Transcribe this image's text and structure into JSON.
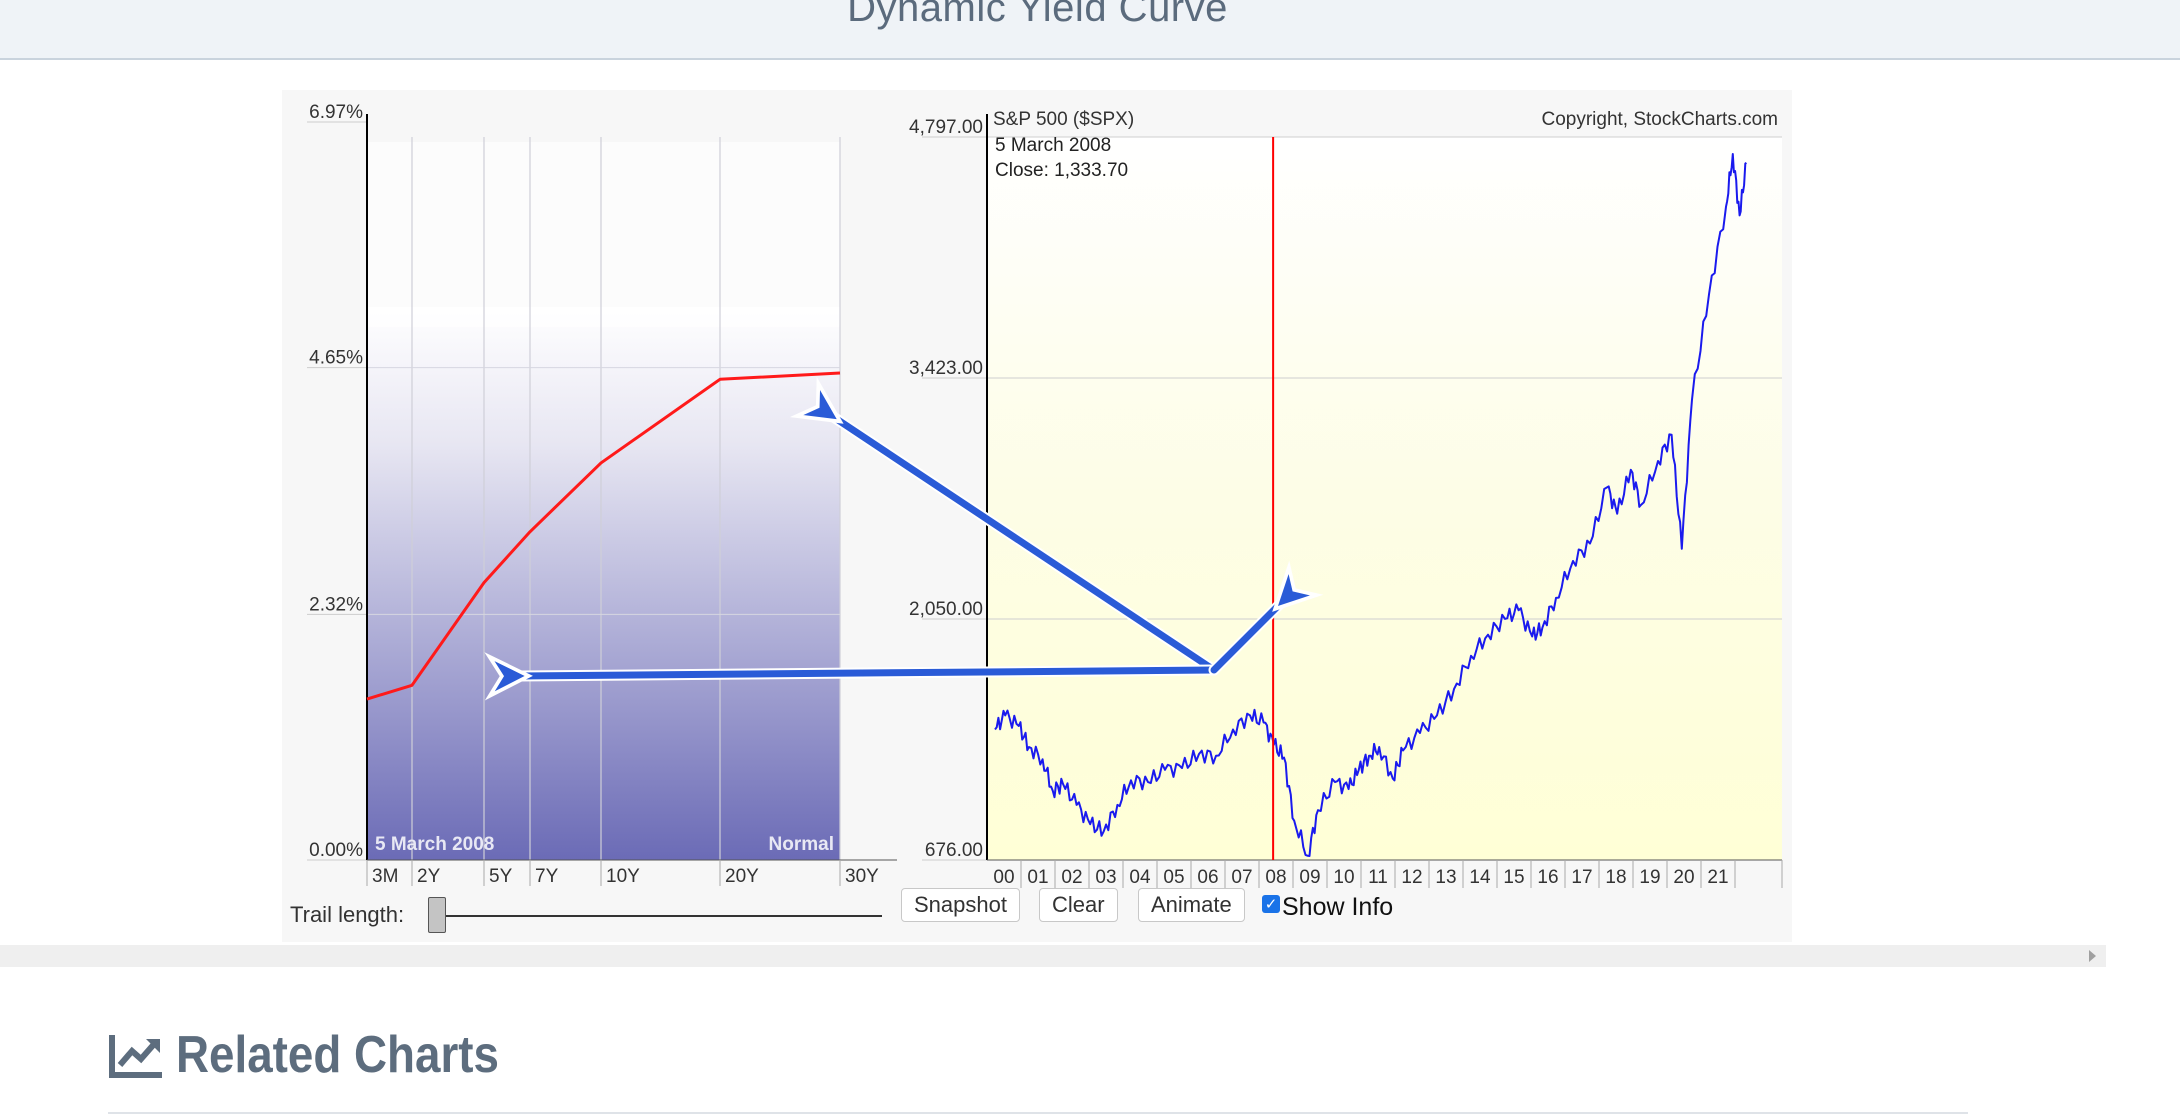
{
  "page": {
    "title": "Dynamic Yield Curve",
    "related_title": "Related Charts",
    "related_icon": "line-chart-icon"
  },
  "chart_data": [
    {
      "type": "line",
      "series": [
        {
          "values": [
            1.52,
            1.65,
            2.62,
            3.1,
            3.75,
            4.54,
            4.6
          ]
        }
      ],
      "categories": [
        "3M",
        "2Y",
        "5Y",
        "7Y",
        "10Y",
        "20Y",
        "30Y"
      ],
      "y_ticks": [
        "0.00%",
        "2.32%",
        "4.65%",
        "6.97%"
      ],
      "ylim": [
        0,
        6.97
      ],
      "date_label": "5  March 2008",
      "shape_label": "Normal",
      "colors": {
        "line": "#ff1a1a",
        "fill_top": "#ffffff",
        "fill_bottom": "#6e6eb8"
      }
    },
    {
      "type": "line",
      "title": "S&P 500 ($SPX)",
      "copyright": "Copyright, StockCharts.com",
      "info_date": "5  March 2008",
      "info_close": "Close: 1,333.70",
      "y_ticks": [
        "676.00",
        "2,050.00",
        "3,423.00",
        "4,797.00"
      ],
      "ylim": [
        676,
        4797
      ],
      "x_ticks": [
        "00",
        "01",
        "02",
        "03",
        "04",
        "05",
        "06",
        "07",
        "08",
        "09",
        "10",
        "11",
        "12",
        "13",
        "14",
        "15",
        "16",
        "17",
        "18",
        "19",
        "20",
        "21"
      ],
      "marker_year": 2008.18,
      "series": [
        {
          "x": [
            2000.0,
            2000.3,
            2000.7,
            2001.0,
            2001.4,
            2001.7,
            2002.0,
            2002.4,
            2002.8,
            2003.2,
            2003.6,
            2004.0,
            2004.5,
            2005.0,
            2005.5,
            2006.0,
            2006.5,
            2007.0,
            2007.5,
            2007.9,
            2008.2,
            2008.5,
            2008.8,
            2009.2,
            2009.5,
            2010.0,
            2010.4,
            2010.7,
            2011.0,
            2011.3,
            2011.7,
            2012.0,
            2012.5,
            2013.0,
            2013.5,
            2014.0,
            2014.5,
            2015.0,
            2015.4,
            2015.8,
            2016.1,
            2016.5,
            2017.0,
            2017.5,
            2018.0,
            2018.3,
            2018.7,
            2019.0,
            2019.5,
            2019.9,
            2020.2,
            2020.5,
            2021.0,
            2021.5,
            2021.7,
            2021.9,
            2022.1
          ],
          "values": [
            1420,
            1500,
            1440,
            1320,
            1250,
            1070,
            1110,
            990,
            880,
            840,
            990,
            1130,
            1120,
            1190,
            1200,
            1280,
            1270,
            1420,
            1500,
            1460,
            1333,
            1260,
            900,
            700,
            960,
            1120,
            1080,
            1190,
            1270,
            1320,
            1140,
            1300,
            1400,
            1500,
            1650,
            1840,
            1960,
            2050,
            2100,
            1950,
            2000,
            2170,
            2380,
            2480,
            2800,
            2650,
            2900,
            2700,
            2950,
            3100,
            2450,
            3300,
            3900,
            4400,
            4700,
            4350,
            4650
          ]
        }
      ],
      "colors": {
        "line": "#1a1aee",
        "marker": "#ff0000",
        "fill_top": "#fefef0",
        "fill_bottom": "#ffffd8"
      }
    }
  ],
  "controls": {
    "trail_label": "Trail length:",
    "snapshot": "Snapshot",
    "clear": "Clear",
    "animate": "Animate",
    "show_info": "Show Info",
    "show_info_checked": true
  },
  "annotations": {
    "arrow_color": "#2a5bd7",
    "icon": "arrow-annotation-icon"
  }
}
